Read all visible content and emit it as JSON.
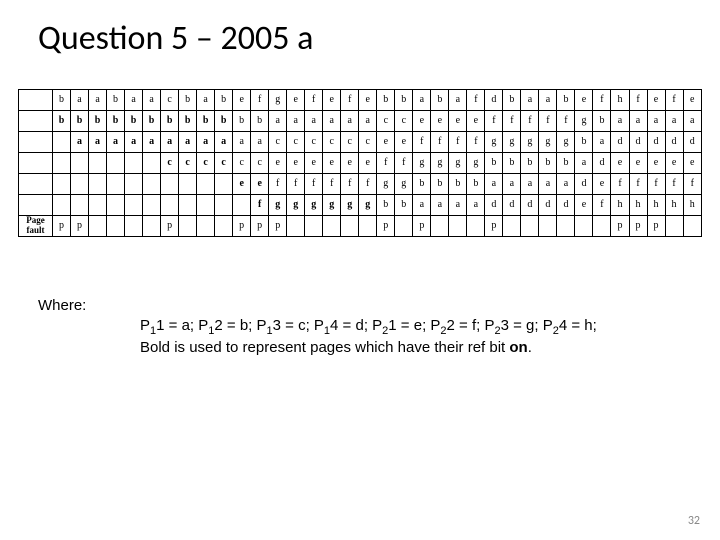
{
  "title": "Question 5 – 2005 a",
  "table": {
    "label": "Page fault",
    "rows": [
      {
        "offset": 1,
        "cells": [
          {
            "t": "b"
          },
          {
            "t": "a"
          },
          {
            "t": "a"
          },
          {
            "t": "b"
          },
          {
            "t": "a"
          },
          {
            "t": "a"
          },
          {
            "t": "c"
          },
          {
            "t": "b"
          },
          {
            "t": "a"
          },
          {
            "t": "b"
          },
          {
            "t": "e"
          },
          {
            "t": "f"
          },
          {
            "t": "g"
          },
          {
            "t": "e"
          },
          {
            "t": "f"
          },
          {
            "t": "e"
          },
          {
            "t": "f"
          },
          {
            "t": "e"
          },
          {
            "t": "b"
          },
          {
            "t": "b"
          },
          {
            "t": "a"
          },
          {
            "t": "b"
          },
          {
            "t": "a"
          },
          {
            "t": "f"
          },
          {
            "t": "d"
          },
          {
            "t": "b"
          },
          {
            "t": "a"
          },
          {
            "t": "a"
          },
          {
            "t": "b"
          },
          {
            "t": "e"
          },
          {
            "t": "f"
          },
          {
            "t": "h"
          },
          {
            "t": "f"
          },
          {
            "t": "e"
          },
          {
            "t": "f"
          },
          {
            "t": "e"
          }
        ]
      },
      {
        "offset": 1,
        "cells": [
          {
            "t": "b",
            "b": 1
          },
          {
            "t": "b",
            "b": 1
          },
          {
            "t": "b",
            "b": 1
          },
          {
            "t": "b",
            "b": 1
          },
          {
            "t": "b",
            "b": 1
          },
          {
            "t": "b",
            "b": 1
          },
          {
            "t": "b",
            "b": 1
          },
          {
            "t": "b",
            "b": 1
          },
          {
            "t": "b",
            "b": 1
          },
          {
            "t": "b",
            "b": 1
          },
          {
            "t": "b"
          },
          {
            "t": "b"
          },
          {
            "t": "a"
          },
          {
            "t": "a"
          },
          {
            "t": "a"
          },
          {
            "t": "a"
          },
          {
            "t": "a"
          },
          {
            "t": "a"
          },
          {
            "t": "c"
          },
          {
            "t": "c"
          },
          {
            "t": "e"
          },
          {
            "t": "e"
          },
          {
            "t": "e"
          },
          {
            "t": "e"
          },
          {
            "t": "f"
          },
          {
            "t": "f"
          },
          {
            "t": "f"
          },
          {
            "t": "f"
          },
          {
            "t": "f"
          },
          {
            "t": "g"
          },
          {
            "t": "b"
          },
          {
            "t": "a"
          },
          {
            "t": "a"
          },
          {
            "t": "a"
          },
          {
            "t": "a"
          },
          {
            "t": "a"
          }
        ]
      },
      {
        "offset": 2,
        "cells": [
          {
            "t": "a",
            "b": 1
          },
          {
            "t": "a",
            "b": 1
          },
          {
            "t": "a",
            "b": 1
          },
          {
            "t": "a",
            "b": 1
          },
          {
            "t": "a",
            "b": 1
          },
          {
            "t": "a",
            "b": 1
          },
          {
            "t": "a",
            "b": 1
          },
          {
            "t": "a",
            "b": 1
          },
          {
            "t": "a",
            "b": 1
          },
          {
            "t": "a"
          },
          {
            "t": "a"
          },
          {
            "t": "c"
          },
          {
            "t": "c"
          },
          {
            "t": "c"
          },
          {
            "t": "c"
          },
          {
            "t": "c"
          },
          {
            "t": "c"
          },
          {
            "t": "e"
          },
          {
            "t": "e"
          },
          {
            "t": "f"
          },
          {
            "t": "f"
          },
          {
            "t": "f"
          },
          {
            "t": "f"
          },
          {
            "t": "g"
          },
          {
            "t": "g"
          },
          {
            "t": "g"
          },
          {
            "t": "g"
          },
          {
            "t": "g"
          },
          {
            "t": "b"
          },
          {
            "t": "a"
          },
          {
            "t": "d"
          },
          {
            "t": "d"
          },
          {
            "t": "d"
          },
          {
            "t": "d"
          },
          {
            "t": "d"
          }
        ]
      },
      {
        "offset": 7,
        "cells": [
          {
            "t": "c",
            "b": 1
          },
          {
            "t": "c",
            "b": 1
          },
          {
            "t": "c",
            "b": 1
          },
          {
            "t": "c",
            "b": 1
          },
          {
            "t": "c"
          },
          {
            "t": "c"
          },
          {
            "t": "e"
          },
          {
            "t": "e"
          },
          {
            "t": "e"
          },
          {
            "t": "e"
          },
          {
            "t": "e"
          },
          {
            "t": "e"
          },
          {
            "t": "f"
          },
          {
            "t": "f"
          },
          {
            "t": "g"
          },
          {
            "t": "g"
          },
          {
            "t": "g"
          },
          {
            "t": "g"
          },
          {
            "t": "b"
          },
          {
            "t": "b"
          },
          {
            "t": "b"
          },
          {
            "t": "b"
          },
          {
            "t": "b"
          },
          {
            "t": "a"
          },
          {
            "t": "d"
          },
          {
            "t": "e"
          },
          {
            "t": "e"
          },
          {
            "t": "e"
          },
          {
            "t": "e"
          },
          {
            "t": "e"
          }
        ]
      },
      {
        "offset": 11,
        "cells": [
          {
            "t": "e",
            "b": 1
          },
          {
            "t": "e",
            "b": 1
          },
          {
            "t": "f"
          },
          {
            "t": "f"
          },
          {
            "t": "f"
          },
          {
            "t": "f"
          },
          {
            "t": "f"
          },
          {
            "t": "f"
          },
          {
            "t": "g"
          },
          {
            "t": "g"
          },
          {
            "t": "b"
          },
          {
            "t": "b"
          },
          {
            "t": "b"
          },
          {
            "t": "b"
          },
          {
            "t": "a"
          },
          {
            "t": "a"
          },
          {
            "t": "a"
          },
          {
            "t": "a"
          },
          {
            "t": "a"
          },
          {
            "t": "d"
          },
          {
            "t": "e"
          },
          {
            "t": "f"
          },
          {
            "t": "f"
          },
          {
            "t": "f"
          },
          {
            "t": "f"
          },
          {
            "t": "f"
          }
        ]
      },
      {
        "offset": 12,
        "cells": [
          {
            "t": "f",
            "b": 1
          },
          {
            "t": "g",
            "b": 1
          },
          {
            "t": "g",
            "b": 1
          },
          {
            "t": "g",
            "b": 1
          },
          {
            "t": "g",
            "b": 1
          },
          {
            "t": "g",
            "b": 1
          },
          {
            "t": "g",
            "b": 1
          },
          {
            "t": "b"
          },
          {
            "t": "b"
          },
          {
            "t": "a"
          },
          {
            "t": "a"
          },
          {
            "t": "a"
          },
          {
            "t": "a"
          },
          {
            "t": "d"
          },
          {
            "t": "d"
          },
          {
            "t": "d"
          },
          {
            "t": "d"
          },
          {
            "t": "d"
          },
          {
            "t": "e"
          },
          {
            "t": "f"
          },
          {
            "t": "h"
          },
          {
            "t": "h"
          },
          {
            "t": "h"
          },
          {
            "t": "h"
          },
          {
            "t": "h"
          }
        ]
      },
      {
        "offset": 1,
        "label": true,
        "cells": [
          {
            "t": "p"
          },
          {
            "t": "p"
          },
          {
            "t": ""
          },
          {
            "t": ""
          },
          {
            "t": ""
          },
          {
            "t": ""
          },
          {
            "t": "p"
          },
          {
            "t": ""
          },
          {
            "t": ""
          },
          {
            "t": ""
          },
          {
            "t": "p"
          },
          {
            "t": "p"
          },
          {
            "t": "p"
          },
          {
            "t": ""
          },
          {
            "t": ""
          },
          {
            "t": ""
          },
          {
            "t": ""
          },
          {
            "t": ""
          },
          {
            "t": "p"
          },
          {
            "t": ""
          },
          {
            "t": "p"
          },
          {
            "t": ""
          },
          {
            "t": ""
          },
          {
            "t": ""
          },
          {
            "t": "p"
          },
          {
            "t": ""
          },
          {
            "t": ""
          },
          {
            "t": ""
          },
          {
            "t": ""
          },
          {
            "t": ""
          },
          {
            "t": ""
          },
          {
            "t": "p"
          },
          {
            "t": "p"
          },
          {
            "t": "p"
          },
          {
            "t": ""
          },
          {
            "t": ""
          }
        ]
      }
    ]
  },
  "where_label": "Where:",
  "where_line1_parts": [
    {
      "t": "P"
    },
    {
      "t": "1",
      "sub": 1
    },
    {
      "t": "1 = a; P"
    },
    {
      "t": "1",
      "sub": 1
    },
    {
      "t": "2 = b; P"
    },
    {
      "t": "1",
      "sub": 1
    },
    {
      "t": "3 = c; P"
    },
    {
      "t": "1",
      "sub": 1
    },
    {
      "t": "4 = d; P"
    },
    {
      "t": "2",
      "sub": 1
    },
    {
      "t": "1 = e; P"
    },
    {
      "t": "2",
      "sub": 1
    },
    {
      "t": "2 = f; P"
    },
    {
      "t": "2",
      "sub": 1
    },
    {
      "t": "3 = g; P"
    },
    {
      "t": "2",
      "sub": 1
    },
    {
      "t": "4 = h;"
    }
  ],
  "where_line2_pre": "Bold is used to represent pages which have their ref bit ",
  "where_line2_bold": "on",
  "where_line2_post": ".",
  "pageno": "32"
}
